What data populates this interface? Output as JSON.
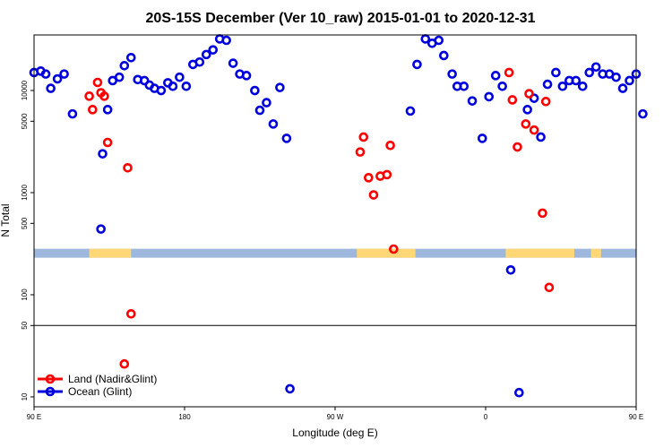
{
  "chart_data": {
    "type": "scatter",
    "title": "20S-15S December (Ver 10_raw)   2015-01-01 to 2020-12-31",
    "xlabel": "Longitude (deg E)",
    "ylabel": "N Total",
    "x_axis": {
      "unwrapped_range": [
        90,
        450
      ],
      "ticks": [
        {
          "value": 90,
          "label": "90 E"
        },
        {
          "value": 180,
          "label": "180"
        },
        {
          "value": 270,
          "label": "90 W"
        },
        {
          "value": 360,
          "label": "0"
        },
        {
          "value": 450,
          "label": "90 E"
        },
        {
          "value": 540,
          "label": "180"
        }
      ]
    },
    "y_axis": {
      "scale": "log",
      "range": [
        8,
        35000
      ],
      "ticks": [
        {
          "value": 10,
          "label": "10"
        },
        {
          "value": 50,
          "label": "50"
        },
        {
          "value": 100,
          "label": "100"
        },
        {
          "value": 500,
          "label": "500"
        },
        {
          "value": 1000,
          "label": "1000"
        },
        {
          "value": 5000,
          "label": "5000"
        },
        {
          "value": 10000,
          "label": "10000"
        }
      ],
      "reference_line": 50
    },
    "land_ocean_strip": {
      "value": 255,
      "ocean_color": "#9db8dc",
      "land_color": "#ffd777",
      "land_segments": [
        [
          123,
          148
        ],
        [
          283,
          318
        ],
        [
          372,
          413
        ],
        [
          423,
          429
        ],
        [
          476,
          505
        ]
      ]
    },
    "legend": {
      "position": "bottom-left"
    },
    "series": [
      {
        "name": "Land (Nadir&Glint)",
        "color": "#ff0000",
        "points": [
          [
            123,
            8800
          ],
          [
            125,
            6500
          ],
          [
            128,
            12000
          ],
          [
            130,
            9500
          ],
          [
            132,
            8800
          ],
          [
            134,
            3100
          ],
          [
            144,
            21
          ],
          [
            146,
            1750
          ],
          [
            148,
            65
          ],
          [
            285,
            2500
          ],
          [
            287,
            3500
          ],
          [
            290,
            1400
          ],
          [
            293,
            950
          ],
          [
            297,
            1450
          ],
          [
            301,
            1500
          ],
          [
            303,
            2900
          ],
          [
            305,
            280
          ],
          [
            374,
            15000
          ],
          [
            376,
            8100
          ],
          [
            379,
            2800
          ],
          [
            384,
            4700
          ],
          [
            386,
            9300
          ],
          [
            389,
            4100
          ],
          [
            394,
            630
          ],
          [
            396,
            7800
          ],
          [
            398,
            118
          ],
          [
            478,
            8900
          ],
          [
            482,
            6500
          ],
          [
            487,
            12000
          ],
          [
            490,
            9400
          ],
          [
            493,
            8800
          ],
          [
            495,
            3100
          ],
          [
            513,
            21
          ],
          [
            518,
            65
          ]
        ]
      },
      {
        "name": "Ocean (Glint)",
        "color": "#0000dd",
        "points": [
          [
            90,
            15000
          ],
          [
            94,
            15500
          ],
          [
            97,
            14500
          ],
          [
            100,
            10500
          ],
          [
            104,
            13000
          ],
          [
            108,
            14500
          ],
          [
            113,
            5900
          ],
          [
            130,
            440
          ],
          [
            131,
            2400
          ],
          [
            134,
            6500
          ],
          [
            137,
            12500
          ],
          [
            141,
            13500
          ],
          [
            144,
            17500
          ],
          [
            148,
            21000
          ],
          [
            152,
            12800
          ],
          [
            156,
            12500
          ],
          [
            159,
            11300
          ],
          [
            162,
            10500
          ],
          [
            166,
            10000
          ],
          [
            170,
            11900
          ],
          [
            173,
            11000
          ],
          [
            177,
            13500
          ],
          [
            181,
            11000
          ],
          [
            185,
            18000
          ],
          [
            189,
            19000
          ],
          [
            193,
            22500
          ],
          [
            197,
            25000
          ],
          [
            201,
            32000
          ],
          [
            205,
            31000
          ],
          [
            209,
            18500
          ],
          [
            213,
            14500
          ],
          [
            217,
            14000
          ],
          [
            222,
            10000
          ],
          [
            225,
            6400
          ],
          [
            229,
            7600
          ],
          [
            233,
            4700
          ],
          [
            237,
            10700
          ],
          [
            241,
            3400
          ],
          [
            243,
            12
          ],
          [
            315,
            6300
          ],
          [
            319,
            18000
          ],
          [
            324,
            32000
          ],
          [
            328,
            29000
          ],
          [
            332,
            31000
          ],
          [
            335,
            22000
          ],
          [
            340,
            14500
          ],
          [
            343,
            11000
          ],
          [
            347,
            11000
          ],
          [
            352,
            7900
          ],
          [
            358,
            3400
          ],
          [
            362,
            8700
          ],
          [
            366,
            14000
          ],
          [
            370,
            11000
          ],
          [
            375,
            175
          ],
          [
            380,
            11
          ],
          [
            385,
            6500
          ],
          [
            389,
            8400
          ],
          [
            393,
            3500
          ],
          [
            397,
            11500
          ],
          [
            402,
            15000
          ],
          [
            406,
            11000
          ],
          [
            410,
            12500
          ],
          [
            414,
            12500
          ],
          [
            418,
            11000
          ],
          [
            422,
            15000
          ],
          [
            426,
            17000
          ],
          [
            430,
            14500
          ],
          [
            434,
            14500
          ],
          [
            438,
            13500
          ],
          [
            442,
            10500
          ],
          [
            446,
            12500
          ],
          [
            450,
            14500
          ],
          [
            454,
            5900
          ],
          [
            478,
            440
          ],
          [
            480,
            2400
          ],
          [
            484,
            6500
          ],
          [
            489,
            12500
          ],
          [
            493,
            13500
          ],
          [
            497,
            17500
          ],
          [
            501,
            21000
          ],
          [
            506,
            12500
          ],
          [
            510,
            12000
          ]
        ]
      }
    ]
  }
}
